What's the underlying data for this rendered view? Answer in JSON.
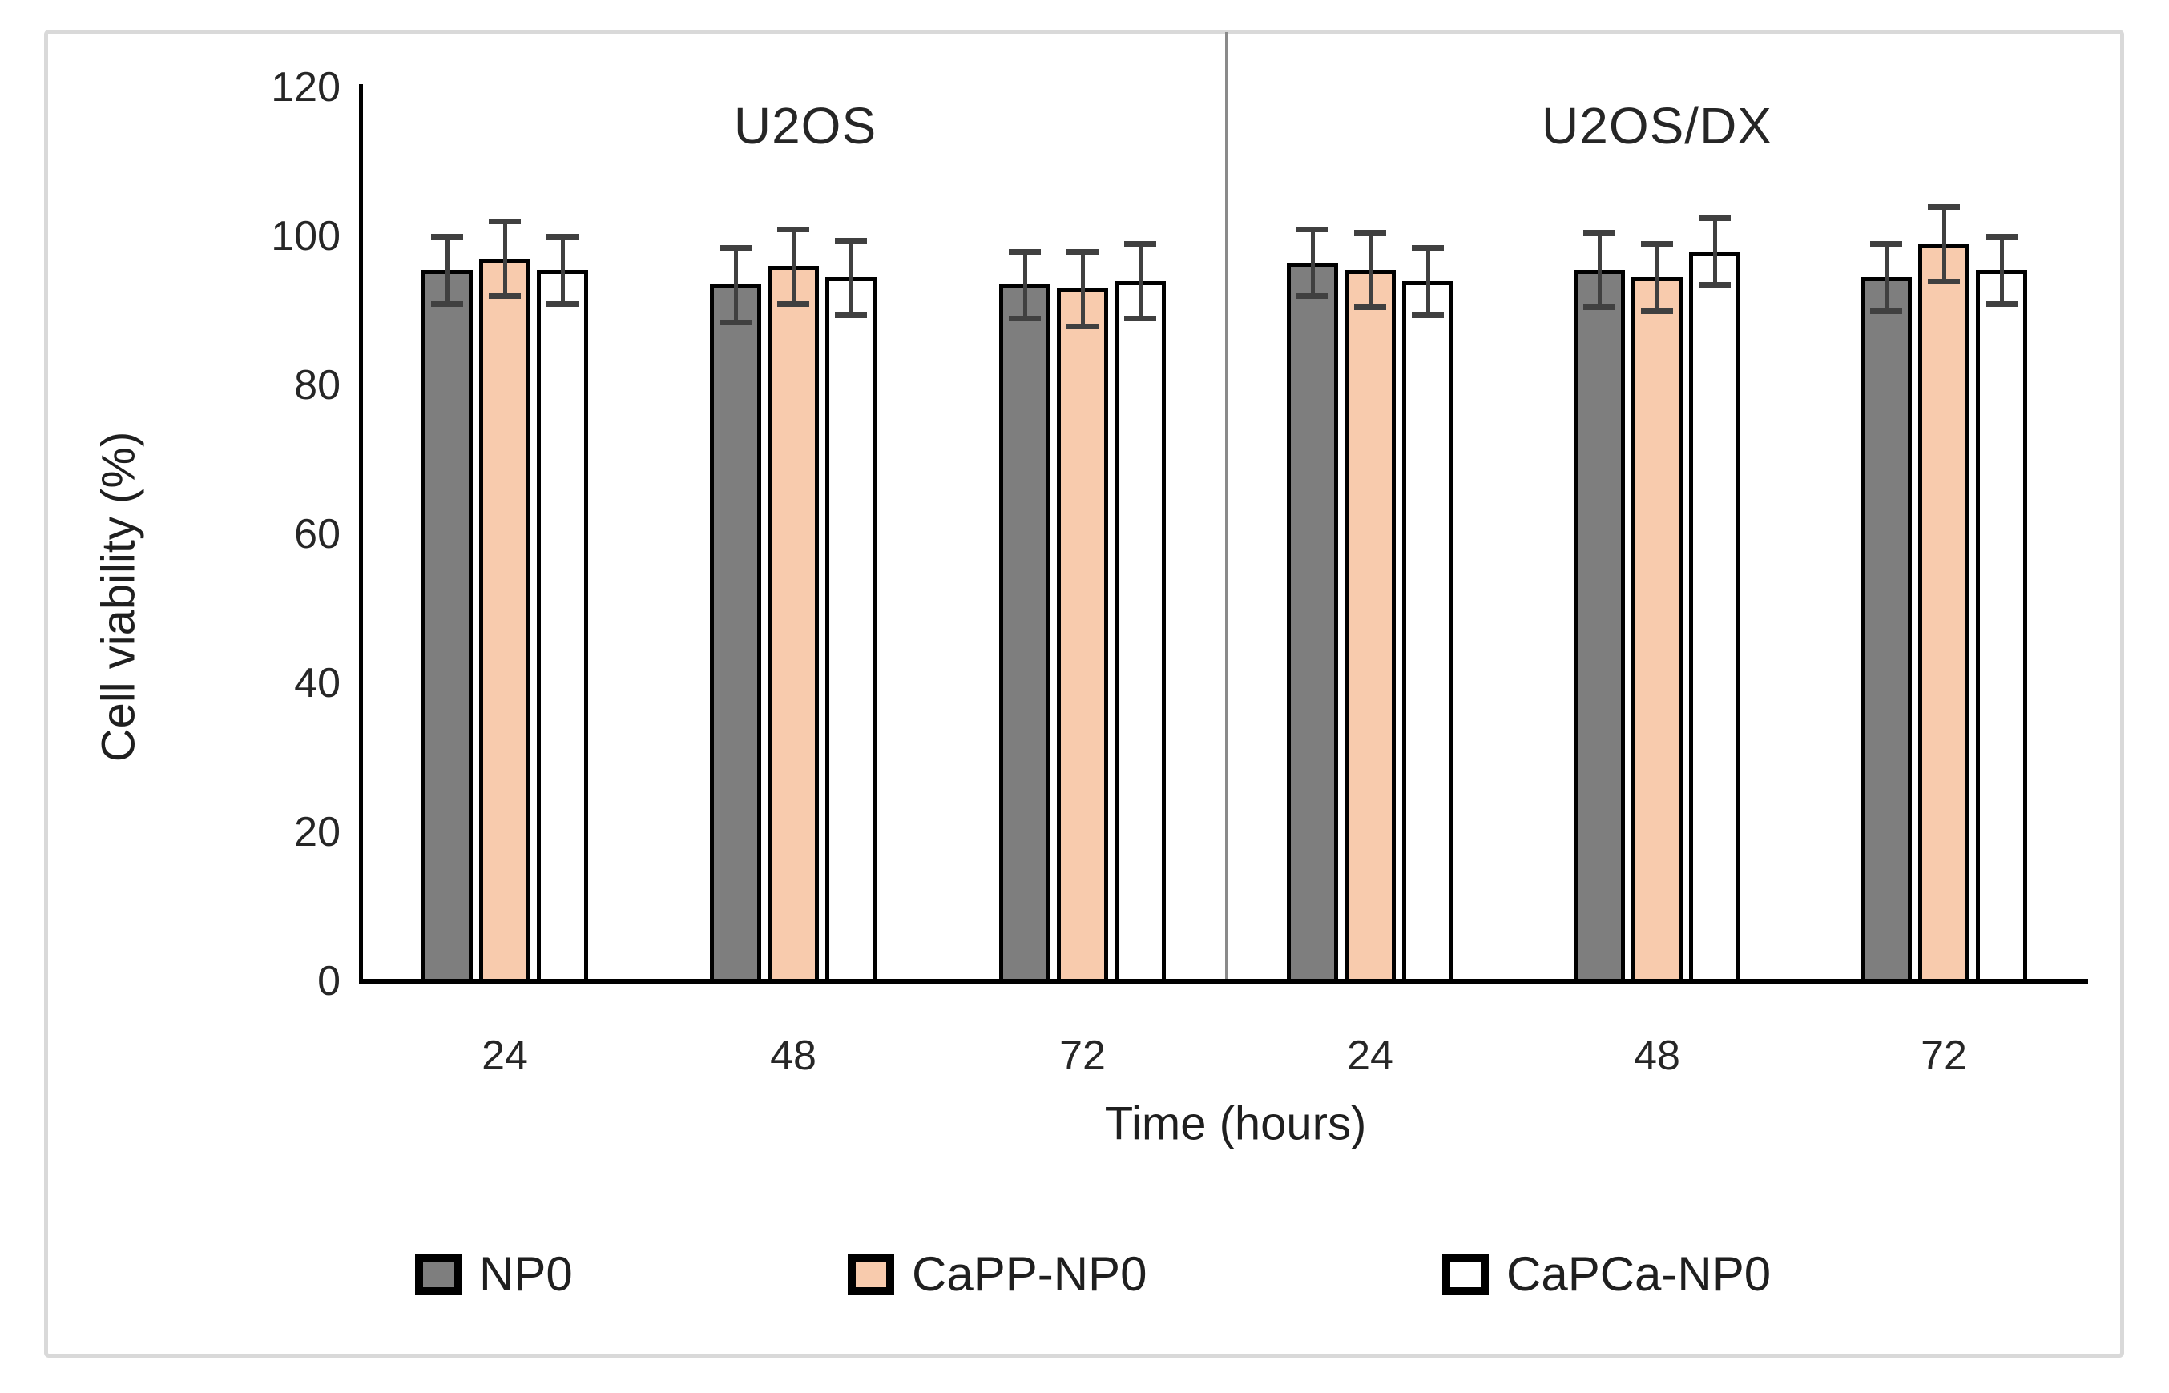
{
  "chart_data": {
    "type": "bar",
    "title": "",
    "ylabel": "Cell viability (%)",
    "xlabel": "Time (hours)",
    "ylim": [
      0,
      120
    ],
    "yticks": [
      0,
      20,
      40,
      60,
      80,
      100,
      120
    ],
    "grid": false,
    "legend_position": "bottom",
    "panels": [
      {
        "title": "U2OS",
        "categories": [
          "24",
          "48",
          "72"
        ],
        "series": [
          {
            "name": "NP0",
            "color": "#7E7E7E",
            "values": [
              95.5,
              93.5,
              93.5
            ],
            "errors": [
              4.5,
              5.0,
              4.5
            ]
          },
          {
            "name": "CaPP-NP0",
            "color": "#F8CBAD",
            "values": [
              97.0,
              96.0,
              93.0
            ],
            "errors": [
              5.0,
              5.0,
              5.0
            ]
          },
          {
            "name": "CaPCa-NP0",
            "color": "#FFFFFF",
            "values": [
              95.5,
              94.5,
              94.0
            ],
            "errors": [
              4.5,
              5.0,
              5.0
            ]
          }
        ]
      },
      {
        "title": "U2OS/DX",
        "categories": [
          "24",
          "48",
          "72"
        ],
        "series": [
          {
            "name": "NP0",
            "color": "#7E7E7E",
            "values": [
              96.5,
              95.5,
              94.5
            ],
            "errors": [
              4.5,
              5.0,
              4.5
            ]
          },
          {
            "name": "CaPP-NP0",
            "color": "#F8CBAD",
            "values": [
              95.5,
              94.5,
              99.0
            ],
            "errors": [
              5.0,
              4.5,
              5.0
            ]
          },
          {
            "name": "CaPCa-NP0",
            "color": "#FFFFFF",
            "values": [
              94.0,
              98.0,
              95.5
            ],
            "errors": [
              4.5,
              4.5,
              4.5
            ]
          }
        ]
      }
    ],
    "legend": [
      {
        "label": "NP0",
        "color": "#7E7E7E"
      },
      {
        "label": "CaPP-NP0",
        "color": "#F8CBAD"
      },
      {
        "label": "CaPCa-NP0",
        "color": "#FFFFFF"
      }
    ],
    "colors": {
      "bar_border": "#000000",
      "error_bar": "#404040",
      "axis": "#000000",
      "divider": "#8A8A8A",
      "frame": "#D9D9D9",
      "text": "#1F1F1F"
    }
  }
}
